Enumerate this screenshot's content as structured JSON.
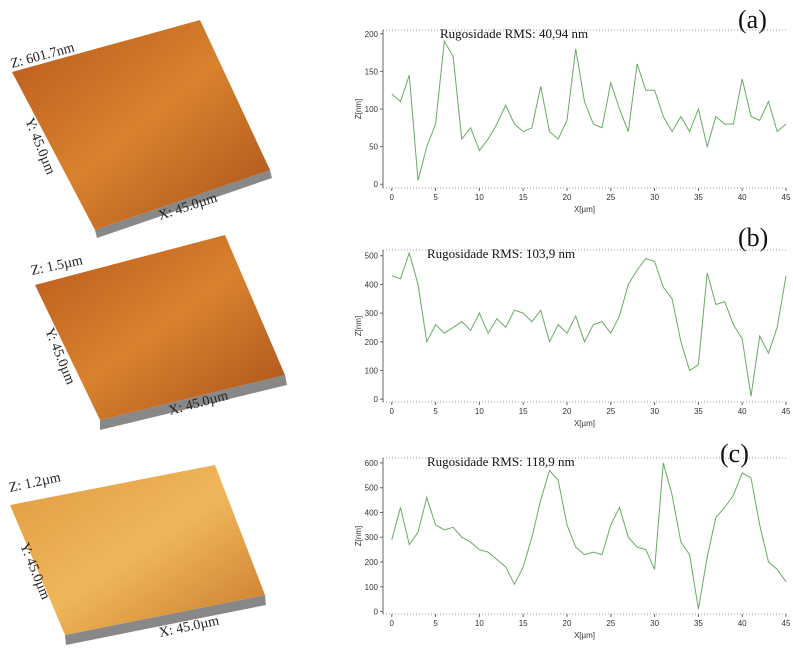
{
  "afm_images": [
    {
      "z_label": "Z: 601.7nm",
      "y_label": "Y: 45.0µm",
      "x_label": "X: 45.0µm"
    },
    {
      "z_label": "Z: 1.5µm",
      "y_label": "Y: 45.0µm",
      "x_label": "X: 45.0µm"
    },
    {
      "z_label": "Z: 1.2µm",
      "y_label": "Y: 45.0µm",
      "x_label": "X: 45.0µm"
    }
  ],
  "chart_data": [
    {
      "type": "line",
      "panel": "(a)",
      "title": "Rugosidade RMS: 40,94 nm",
      "xlabel": "X[µm]",
      "ylabel": "Z[nm]",
      "color": "#6aaa64",
      "x": [
        0,
        1,
        2,
        3,
        4,
        5,
        6,
        7,
        8,
        9,
        10,
        11,
        12,
        13,
        14,
        15,
        16,
        17,
        18,
        19,
        20,
        21,
        22,
        23,
        24,
        25,
        26,
        27,
        28,
        29,
        30,
        31,
        32,
        33,
        34,
        35,
        36,
        37,
        38,
        39,
        40,
        41,
        42,
        43,
        44,
        45
      ],
      "values": [
        120,
        110,
        145,
        5,
        50,
        80,
        190,
        170,
        60,
        75,
        45,
        60,
        80,
        105,
        80,
        70,
        75,
        130,
        70,
        60,
        85,
        180,
        110,
        80,
        75,
        135,
        100,
        70,
        160,
        125,
        125,
        90,
        70,
        90,
        70,
        100,
        50,
        90,
        80,
        80,
        140,
        90,
        85,
        110,
        70,
        80
      ],
      "xlim": [
        -1,
        45
      ],
      "xticks": [
        0,
        5,
        10,
        15,
        20,
        25,
        30,
        35,
        40,
        45
      ],
      "ylim": [
        -5,
        205
      ],
      "yticks": [
        0,
        50,
        100,
        150,
        200
      ]
    },
    {
      "type": "line",
      "panel": "(b)",
      "title": "Rugosidade RMS: 103,9 nm",
      "xlabel": "X[µm]",
      "ylabel": "Z[nm]",
      "color": "#6aaa64",
      "x": [
        0,
        1,
        2,
        3,
        4,
        5,
        6,
        7,
        8,
        9,
        10,
        11,
        12,
        13,
        14,
        15,
        16,
        17,
        18,
        19,
        20,
        21,
        22,
        23,
        24,
        25,
        26,
        27,
        28,
        29,
        30,
        31,
        32,
        33,
        34,
        35,
        36,
        37,
        38,
        39,
        40,
        41,
        42,
        43,
        44,
        45
      ],
      "values": [
        430,
        420,
        510,
        400,
        200,
        260,
        230,
        250,
        270,
        240,
        300,
        230,
        280,
        250,
        310,
        300,
        270,
        310,
        200,
        260,
        230,
        290,
        200,
        260,
        270,
        230,
        290,
        400,
        450,
        490,
        480,
        390,
        350,
        200,
        100,
        120,
        440,
        330,
        340,
        260,
        210,
        10,
        220,
        160,
        250,
        430
      ],
      "xlim": [
        -1,
        45
      ],
      "xticks": [
        0,
        5,
        10,
        15,
        20,
        25,
        30,
        35,
        40,
        45
      ],
      "ylim": [
        -10,
        520
      ],
      "yticks": [
        0,
        100,
        200,
        300,
        400,
        500
      ]
    },
    {
      "type": "line",
      "panel": "(c)",
      "title": "Rugosidade RMS: 118,9 nm",
      "xlabel": "X[µm]",
      "ylabel": "Z[nm]",
      "color": "#6aaa64",
      "x": [
        0,
        1,
        2,
        3,
        4,
        5,
        6,
        7,
        8,
        9,
        10,
        11,
        12,
        13,
        14,
        15,
        16,
        17,
        18,
        19,
        20,
        21,
        22,
        23,
        24,
        25,
        26,
        27,
        28,
        29,
        30,
        31,
        32,
        33,
        34,
        35,
        36,
        37,
        38,
        39,
        40,
        41,
        42,
        43,
        44,
        45
      ],
      "values": [
        290,
        420,
        270,
        320,
        460,
        350,
        330,
        340,
        300,
        280,
        250,
        240,
        210,
        180,
        110,
        180,
        300,
        450,
        570,
        530,
        350,
        260,
        230,
        240,
        230,
        350,
        420,
        300,
        260,
        250,
        170,
        600,
        470,
        280,
        230,
        10,
        220,
        380,
        420,
        470,
        560,
        540,
        350,
        200,
        170,
        120
      ],
      "xlim": [
        -1,
        45
      ],
      "xticks": [
        0,
        5,
        10,
        15,
        20,
        25,
        30,
        35,
        40,
        45
      ],
      "ylim": [
        -10,
        620
      ],
      "yticks": [
        0,
        100,
        200,
        300,
        400,
        500,
        600
      ]
    }
  ]
}
